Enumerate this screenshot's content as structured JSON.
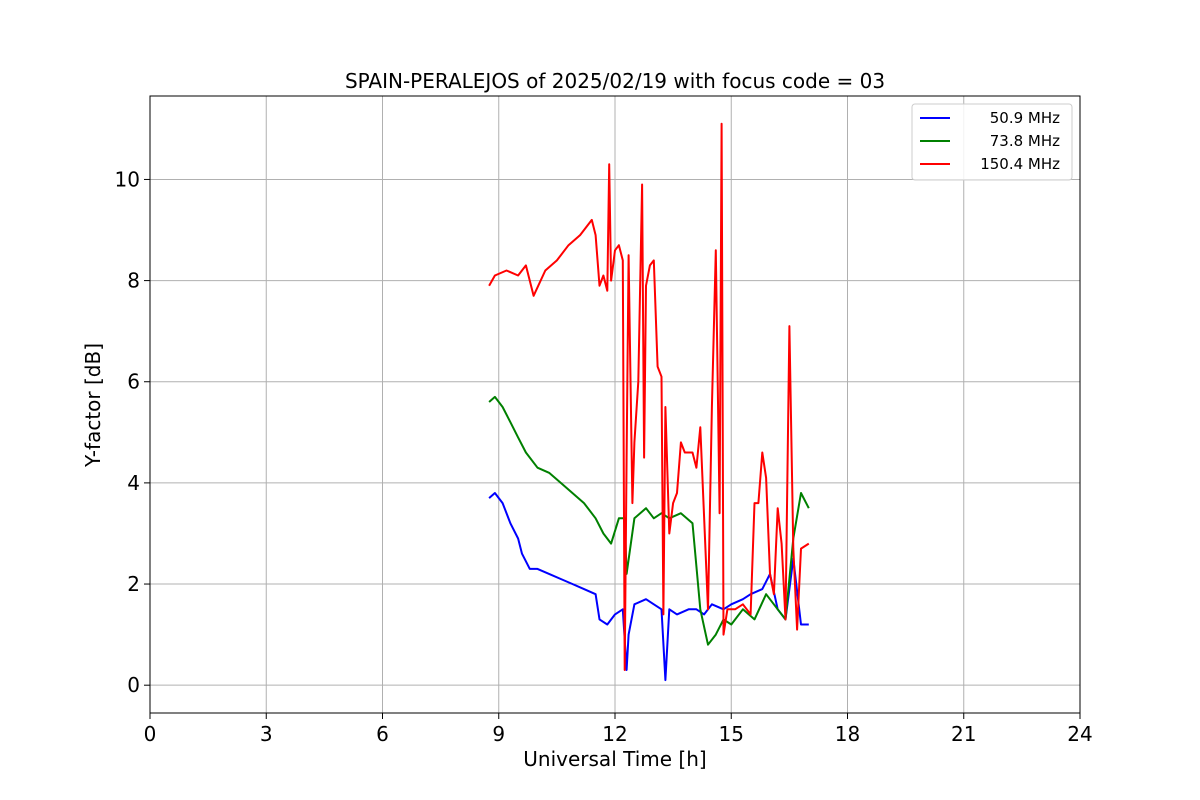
{
  "chart_data": {
    "type": "line",
    "title": "SPAIN-PERALEJOS of 2025/02/19 with focus code = 03",
    "xlabel": "Universal Time [h]",
    "ylabel": "Y-factor [dB]",
    "xlim": [
      0,
      24
    ],
    "ylim": [
      -0.55,
      11.65
    ],
    "xticks": [
      0,
      3,
      6,
      9,
      12,
      15,
      18,
      21,
      24
    ],
    "yticks": [
      0,
      2,
      4,
      6,
      8,
      10
    ],
    "grid": true,
    "legend_position": "top-right",
    "series": [
      {
        "name": "50.9 MHz",
        "color": "#0000ff",
        "x": [
          8.75,
          8.9,
          9.1,
          9.3,
          9.5,
          9.6,
          9.8,
          10.0,
          10.3,
          10.6,
          10.9,
          11.2,
          11.5,
          11.6,
          11.8,
          12.0,
          12.2,
          12.3,
          12.35,
          12.5,
          12.8,
          13.0,
          13.2,
          13.3,
          13.4,
          13.6,
          13.9,
          14.1,
          14.3,
          14.5,
          14.8,
          15.0,
          15.3,
          15.5,
          15.8,
          16.0,
          16.2,
          16.4,
          16.6,
          16.8,
          17.0
        ],
        "values": [
          3.7,
          3.8,
          3.6,
          3.2,
          2.9,
          2.6,
          2.3,
          2.3,
          2.2,
          2.1,
          2.0,
          1.9,
          1.8,
          1.3,
          1.2,
          1.4,
          1.5,
          0.3,
          1.0,
          1.6,
          1.7,
          1.6,
          1.5,
          0.1,
          1.5,
          1.4,
          1.5,
          1.5,
          1.4,
          1.6,
          1.5,
          1.6,
          1.7,
          1.8,
          1.9,
          2.2,
          1.5,
          1.3,
          2.5,
          1.2,
          1.2
        ]
      },
      {
        "name": "73.8 MHz",
        "color": "#008000",
        "x": [
          8.75,
          8.9,
          9.1,
          9.3,
          9.5,
          9.7,
          10.0,
          10.3,
          10.6,
          10.9,
          11.2,
          11.5,
          11.7,
          11.9,
          12.1,
          12.25,
          12.3,
          12.5,
          12.8,
          13.0,
          13.2,
          13.4,
          13.7,
          14.0,
          14.2,
          14.4,
          14.6,
          14.8,
          15.0,
          15.3,
          15.6,
          15.9,
          16.2,
          16.4,
          16.6,
          16.8,
          17.0
        ],
        "values": [
          5.6,
          5.7,
          5.5,
          5.2,
          4.9,
          4.6,
          4.3,
          4.2,
          4.0,
          3.8,
          3.6,
          3.3,
          3.0,
          2.8,
          3.3,
          3.3,
          2.2,
          3.3,
          3.5,
          3.3,
          3.4,
          3.3,
          3.4,
          3.2,
          1.5,
          0.8,
          1.0,
          1.3,
          1.2,
          1.5,
          1.3,
          1.8,
          1.5,
          1.3,
          2.9,
          3.8,
          3.5
        ]
      },
      {
        "name": "150.4 MHz",
        "color": "#ff0000",
        "x": [
          8.75,
          8.9,
          9.2,
          9.5,
          9.7,
          9.9,
          10.2,
          10.5,
          10.8,
          11.1,
          11.4,
          11.5,
          11.6,
          11.7,
          11.8,
          11.85,
          11.9,
          12.0,
          12.1,
          12.2,
          12.25,
          12.3,
          12.35,
          12.45,
          12.5,
          12.6,
          12.7,
          12.75,
          12.8,
          12.9,
          13.0,
          13.1,
          13.2,
          13.25,
          13.3,
          13.4,
          13.5,
          13.6,
          13.7,
          13.8,
          14.0,
          14.1,
          14.2,
          14.4,
          14.5,
          14.6,
          14.7,
          14.75,
          14.8,
          14.9,
          15.1,
          15.3,
          15.5,
          15.6,
          15.7,
          15.8,
          15.9,
          16.0,
          16.1,
          16.2,
          16.3,
          16.4,
          16.5,
          16.6,
          16.7,
          16.8,
          17.0
        ],
        "values": [
          7.9,
          8.1,
          8.2,
          8.1,
          8.3,
          7.7,
          8.2,
          8.4,
          8.7,
          8.9,
          9.2,
          8.9,
          7.9,
          8.1,
          7.8,
          10.3,
          8.0,
          8.6,
          8.7,
          8.4,
          0.3,
          4.5,
          8.5,
          3.6,
          4.8,
          6.0,
          9.9,
          4.5,
          7.9,
          8.3,
          8.4,
          6.3,
          6.1,
          1.4,
          5.5,
          3.0,
          3.6,
          3.8,
          4.8,
          4.6,
          4.6,
          4.3,
          5.1,
          1.5,
          5.5,
          8.6,
          3.4,
          11.1,
          1.0,
          1.5,
          1.5,
          1.6,
          1.4,
          3.6,
          3.6,
          4.6,
          4.1,
          2.2,
          1.8,
          3.5,
          2.8,
          1.3,
          7.1,
          2.7,
          1.1,
          2.7,
          2.8
        ]
      }
    ]
  }
}
